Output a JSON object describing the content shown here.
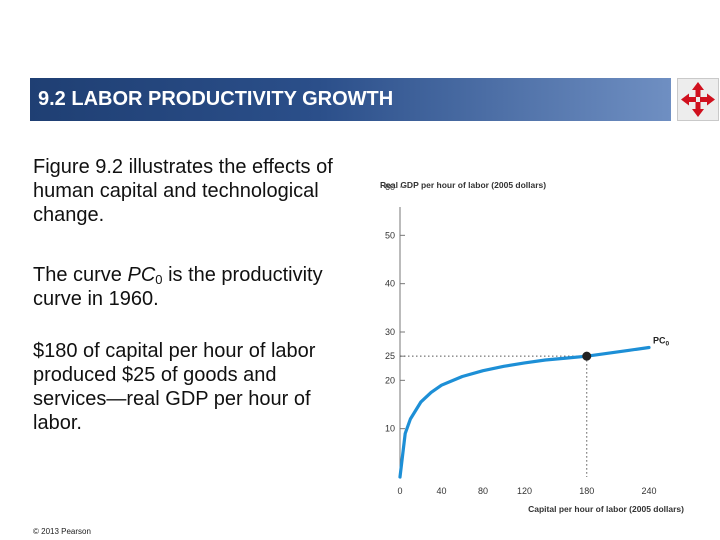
{
  "slide": {
    "title": "9.2  LABOR PRODUCTIVITY GROWTH",
    "paragraphs": [
      {
        "text": "Figure 9.2 illustrates the effects of human capital and technological change."
      },
      {
        "text_before": "The curve ",
        "text_italic": "PC",
        "text_sub": "0",
        "text_after": " is the productivity curve in 1960."
      },
      {
        "text": "$180 of capital per hour of labor produced $25 of goods and services—real GDP per hour of labor."
      }
    ],
    "footer": "© 2013 Pearson",
    "nav_icon": "four-way-arrows-icon"
  },
  "chart_data": {
    "type": "line",
    "ylabel": "Real GDP per hour of labor (2005 dollars)",
    "xlabel": "Capital per hour of labor (2005 dollars)",
    "xlim": [
      0,
      240
    ],
    "ylim": [
      0,
      60
    ],
    "x_ticks": [
      0,
      40,
      80,
      120,
      180,
      240
    ],
    "y_ticks": [
      10,
      20,
      25,
      30,
      40,
      50,
      60
    ],
    "series": [
      {
        "name": "PC0",
        "label_main": "PC",
        "label_sub": "0",
        "color": "#1d8fd6",
        "x": [
          0,
          5,
          10,
          20,
          30,
          40,
          60,
          80,
          100,
          120,
          140,
          160,
          180,
          200,
          220,
          240
        ],
        "y": [
          0,
          9,
          12,
          15.5,
          17.5,
          19,
          20.8,
          22,
          22.9,
          23.6,
          24.2,
          24.6,
          25,
          25.6,
          26.2,
          26.8
        ]
      }
    ],
    "highlight_point": {
      "x": 180,
      "y": 25,
      "color": "#222222"
    },
    "guide_lines": "dotted",
    "grid": false
  }
}
